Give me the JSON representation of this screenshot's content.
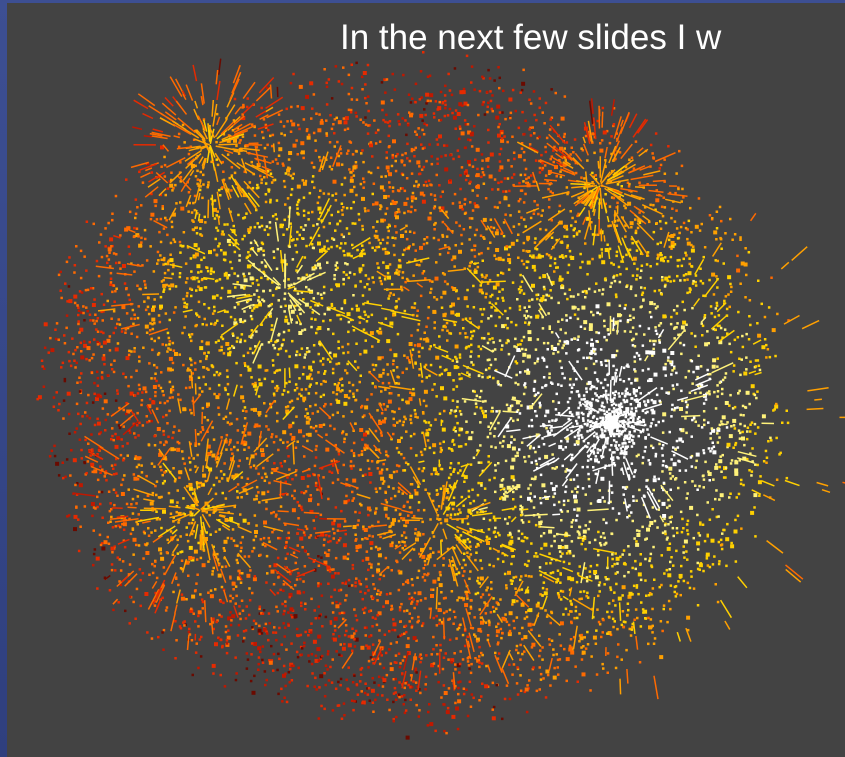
{
  "slide": {
    "text": "In the next few slides I w"
  }
}
